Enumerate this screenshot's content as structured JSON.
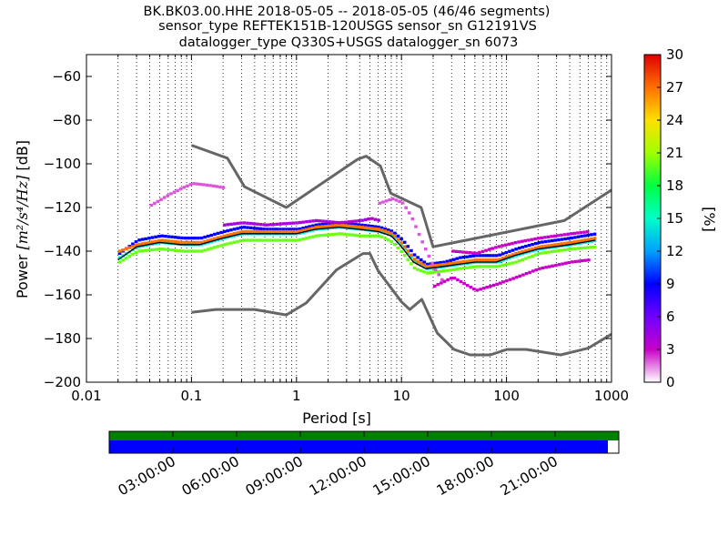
{
  "title_lines": [
    "BK.BK03.00.HHE   2018-05-05 -- 2018-05-05  (46/46 segments)",
    "sensor_type REFTEK151B-120USGS sensor_sn G12191VS",
    "datalogger_type Q330S+USGS datalogger_sn 6073"
  ],
  "chart_data": {
    "type": "heatmap",
    "title": "BK.BK03.00.HHE   2018-05-05 -- 2018-05-05  (46/46 segments)",
    "xlabel": "Period [s]",
    "ylabel_prefix": "Power ",
    "ylabel_unit": "[m²/s⁴/Hz]",
    "ylabel_suffix": " [dB]",
    "xscale": "log",
    "xlim": [
      0.01,
      1000
    ],
    "ylim": [
      -200,
      -50
    ],
    "x_ticks": [
      0.01,
      0.1,
      1,
      10,
      100,
      1000
    ],
    "x_tick_labels": [
      "0.01",
      "0.1",
      "1",
      "10",
      "100",
      "1000"
    ],
    "y_ticks": [
      -200,
      -180,
      -160,
      -140,
      -120,
      -100,
      -80,
      -60
    ],
    "y_tick_labels": [
      "−200",
      "−180",
      "−160",
      "−140",
      "−120",
      "−100",
      "−80",
      "−60"
    ],
    "grid": "dotted vertical lines at log minor ticks",
    "colorbar": {
      "label": "[%]",
      "range": [
        0,
        30
      ],
      "ticks": [
        0,
        3,
        6,
        9,
        12,
        15,
        18,
        21,
        24,
        27,
        30
      ],
      "tick_labels": [
        "0",
        "3",
        "6",
        "9",
        "12",
        "15",
        "18",
        "21",
        "24",
        "27",
        "30"
      ]
    },
    "noise_model_high": {
      "periods": [
        0.1,
        0.22,
        0.32,
        0.8,
        3.8,
        4.6,
        6.3,
        7.9,
        15.4,
        20,
        354.8,
        1000
      ],
      "power": [
        -91.5,
        -97.4,
        -110.5,
        -120,
        -98,
        -96.5,
        -101,
        -113.5,
        -120,
        -138,
        -126,
        -112
      ]
    },
    "noise_model_low": {
      "periods": [
        0.1,
        0.17,
        0.4,
        0.8,
        1.24,
        2.4,
        4.3,
        5.0,
        6.0,
        10,
        12,
        15.6,
        21.9,
        31.6,
        45,
        70,
        101,
        154,
        328,
        600,
        1000
      ],
      "power": [
        -168,
        -166.7,
        -166.7,
        -169.2,
        -163.7,
        -148.6,
        -141.1,
        -141.1,
        -149,
        -163.2,
        -166.7,
        -162.1,
        -177.5,
        -185,
        -187.5,
        -187.5,
        -185,
        -185,
        -187.5,
        -184.4,
        -178
      ]
    },
    "mode_line": {
      "periods": [
        0.02,
        0.03,
        0.05,
        0.08,
        0.12,
        0.2,
        0.3,
        0.5,
        1,
        1.5,
        2.5,
        4,
        6,
        8,
        10,
        13,
        17,
        25,
        35,
        50,
        80,
        120,
        200,
        400,
        700
      ],
      "power": [
        -144,
        -138,
        -136,
        -137,
        -137,
        -134,
        -132,
        -132,
        -132,
        -130,
        -129,
        -130,
        -131,
        -133,
        -138,
        -145,
        -148,
        -147,
        -146,
        -145,
        -145,
        -142,
        -139,
        -137,
        -135
      ]
    },
    "psd_bands": [
      {
        "periods": [
          0.02,
          0.03,
          0.05,
          0.08,
          0.12,
          0.2,
          0.3,
          0.5,
          1,
          1.5,
          2.5,
          4,
          6,
          8,
          10,
          13,
          17,
          25,
          35,
          50,
          80,
          120,
          200,
          400,
          700
        ],
        "power": [
          -143,
          -138,
          -136,
          -137,
          -137,
          -134,
          -132,
          -132,
          -132,
          -130,
          -129,
          -130,
          -131,
          -133,
          -138,
          -145,
          -148,
          -147,
          -146,
          -145,
          -145,
          -142,
          -139,
          -137,
          -135
        ],
        "percent": 14
      },
      {
        "periods": [
          0.02,
          0.03,
          0.05,
          0.08,
          0.12,
          0.2,
          0.3,
          0.5,
          1,
          1.5,
          2.5,
          4,
          6,
          8,
          10,
          13,
          17,
          25,
          35,
          50,
          80,
          120,
          200,
          400,
          700
        ],
        "power": [
          -145,
          -140,
          -139,
          -140,
          -140,
          -137,
          -135,
          -135,
          -135,
          -133,
          -132,
          -133,
          -133,
          -136,
          -141,
          -148,
          -150,
          -149,
          -148,
          -147,
          -147,
          -145,
          -141,
          -139,
          -138
        ],
        "percent": 20
      },
      {
        "periods": [
          0.02,
          0.03,
          0.05,
          0.08,
          0.12,
          0.2,
          0.3,
          0.5,
          1,
          1.5,
          2.5,
          4,
          6,
          8,
          10,
          13,
          17,
          25,
          35,
          50,
          80,
          120,
          200,
          400,
          700
        ],
        "power": [
          -141,
          -135,
          -133,
          -134,
          -134,
          -131,
          -129,
          -130,
          -130,
          -128,
          -127,
          -128,
          -129,
          -131,
          -135,
          -142,
          -146,
          -145,
          -143,
          -142,
          -142,
          -139,
          -136,
          -134,
          -132
        ],
        "percent": 9
      },
      {
        "periods": [
          0.02,
          0.03,
          0.05,
          0.08,
          0.12,
          0.2,
          0.3,
          0.5,
          1,
          1.5,
          2.5,
          4,
          6,
          8,
          10,
          13,
          17,
          25,
          35,
          50,
          80,
          120,
          200,
          400,
          700
        ],
        "power": [
          -140,
          -137,
          -135,
          -136,
          -136,
          -133,
          -131,
          -131,
          -131,
          -129,
          -128,
          -129,
          -130,
          -132,
          -137,
          -144,
          -147,
          -146,
          -145,
          -144,
          -144,
          -141,
          -138,
          -136,
          -134
        ],
        "percent": 27
      },
      {
        "periods": [
          0.2,
          0.3,
          0.5,
          1,
          1.5,
          2.5,
          4,
          5,
          6
        ],
        "power": [
          -128,
          -127,
          -128,
          -127,
          -126,
          -127,
          -126,
          -125,
          -126
        ],
        "percent": 4
      },
      {
        "periods": [
          0.04,
          0.06,
          0.08,
          0.1,
          0.15,
          0.2
        ],
        "power": [
          -119,
          -114,
          -111,
          -109,
          -110,
          -111
        ],
        "percent": 2
      },
      {
        "periods": [
          6,
          8,
          10,
          12,
          15,
          20,
          25
        ],
        "power": [
          -118,
          -116,
          -118,
          -124,
          -135,
          -148,
          -155
        ],
        "percent": 2
      },
      {
        "periods": [
          20,
          30,
          50,
          80,
          120,
          200,
          400,
          600
        ],
        "power": [
          -156,
          -152,
          -158,
          -155,
          -152,
          -148,
          -145,
          -144
        ],
        "percent": 3
      },
      {
        "periods": [
          30,
          50,
          80,
          120,
          200,
          400,
          600
        ],
        "power": [
          -140,
          -141,
          -138,
          -136,
          -134,
          -132,
          -131
        ],
        "percent": 3
      }
    ]
  },
  "timeline": {
    "data_coverage_color": "#008000",
    "gap_coverage_color": "#0000ff",
    "gap_coverage_end_fraction": 0.9786,
    "time_labels": [
      "03:00:00",
      "06:00:00",
      "09:00:00",
      "12:00:00",
      "15:00:00",
      "18:00:00",
      "21:00:00"
    ],
    "time_hours": [
      3,
      6,
      9,
      12,
      15,
      18,
      21
    ],
    "range_hours": [
      0,
      24
    ]
  },
  "colors": {
    "noise_model": "#666666",
    "mode_line": "#000000"
  }
}
